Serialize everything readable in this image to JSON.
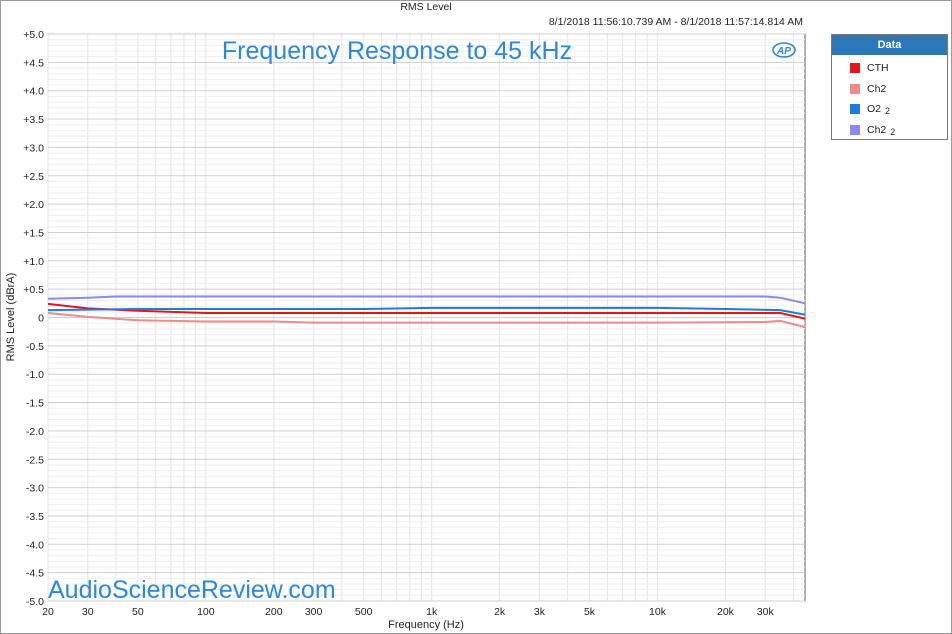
{
  "header": {
    "title": "RMS Level",
    "time_range": "8/1/2018 11:56:10.739 AM - 8/1/2018 11:57:14.814 AM"
  },
  "legend": {
    "title": "Data",
    "items": [
      {
        "label": "CTH",
        "suffix": "",
        "color": "#e8141c"
      },
      {
        "label": "Ch2",
        "suffix": "",
        "color": "#f08a8a"
      },
      {
        "label": "O2",
        "suffix": "2",
        "color": "#1a7de0"
      },
      {
        "label": "Ch2",
        "suffix": "2",
        "color": "#8a8af5"
      }
    ]
  },
  "watermark": "AudioScienceReview.com",
  "logo_text": "AP",
  "chart_data": {
    "type": "line",
    "title": "Frequency Response to 45 kHz",
    "xlabel": "Frequency (Hz)",
    "ylabel": "RMS Level (dBrA)",
    "x_scale": "log",
    "xlim": [
      20,
      45000
    ],
    "ylim": [
      -5.0,
      5.0
    ],
    "grid": true,
    "legend_position": "outside-right",
    "x_ticks": [
      {
        "value": 20,
        "label": "20"
      },
      {
        "value": 30,
        "label": "30"
      },
      {
        "value": 50,
        "label": "50"
      },
      {
        "value": 100,
        "label": "100"
      },
      {
        "value": 200,
        "label": "200"
      },
      {
        "value": 300,
        "label": "300"
      },
      {
        "value": 500,
        "label": "500"
      },
      {
        "value": 1000,
        "label": "1k"
      },
      {
        "value": 2000,
        "label": "2k"
      },
      {
        "value": 3000,
        "label": "3k"
      },
      {
        "value": 5000,
        "label": "5k"
      },
      {
        "value": 10000,
        "label": "10k"
      },
      {
        "value": 20000,
        "label": "20k"
      },
      {
        "value": 30000,
        "label": "30k"
      }
    ],
    "y_ticks": [
      {
        "value": 5.0,
        "label": "+5.0"
      },
      {
        "value": 4.5,
        "label": "+4.5"
      },
      {
        "value": 4.0,
        "label": "+4.0"
      },
      {
        "value": 3.5,
        "label": "+3.5"
      },
      {
        "value": 3.0,
        "label": "+3.0"
      },
      {
        "value": 2.5,
        "label": "+2.5"
      },
      {
        "value": 2.0,
        "label": "+2.0"
      },
      {
        "value": 1.5,
        "label": "+1.5"
      },
      {
        "value": 1.0,
        "label": "+1.0"
      },
      {
        "value": 0.5,
        "label": "+0.5"
      },
      {
        "value": 0,
        "label": "0"
      },
      {
        "value": -0.5,
        "label": "-0.5"
      },
      {
        "value": -1.0,
        "label": "-1.0"
      },
      {
        "value": -1.5,
        "label": "-1.5"
      },
      {
        "value": -2.0,
        "label": "-2.0"
      },
      {
        "value": -2.5,
        "label": "-2.5"
      },
      {
        "value": -3.0,
        "label": "-3.0"
      },
      {
        "value": -3.5,
        "label": "-3.5"
      },
      {
        "value": -4.0,
        "label": "-4.0"
      },
      {
        "value": -4.5,
        "label": "-4.5"
      },
      {
        "value": -5.0,
        "label": "-5.0"
      }
    ],
    "series": [
      {
        "name": "CTH",
        "color": "#e8141c",
        "x": [
          20,
          30,
          50,
          100,
          1000,
          10000,
          35000,
          45000
        ],
        "y": [
          0.24,
          0.16,
          0.12,
          0.08,
          0.08,
          0.08,
          0.08,
          -0.02
        ]
      },
      {
        "name": "Ch2",
        "color": "#f08a8a",
        "x": [
          20,
          30,
          50,
          100,
          200,
          300,
          1000,
          10000,
          30000,
          35000,
          45000
        ],
        "y": [
          0.08,
          0.01,
          -0.05,
          -0.07,
          -0.07,
          -0.09,
          -0.09,
          -0.09,
          -0.08,
          -0.06,
          -0.17
        ]
      },
      {
        "name": "O2 2",
        "color": "#1a7de0",
        "x": [
          20,
          30,
          50,
          100,
          500,
          1000,
          10000,
          20000,
          35000,
          45000
        ],
        "y": [
          0.13,
          0.14,
          0.15,
          0.15,
          0.15,
          0.17,
          0.17,
          0.15,
          0.13,
          0.05
        ]
      },
      {
        "name": "Ch2 2",
        "color": "#8a8af5",
        "x": [
          20,
          30,
          40,
          100,
          1000,
          10000,
          30000,
          35000,
          45000
        ],
        "y": [
          0.33,
          0.35,
          0.37,
          0.37,
          0.37,
          0.37,
          0.37,
          0.35,
          0.25
        ]
      }
    ]
  }
}
